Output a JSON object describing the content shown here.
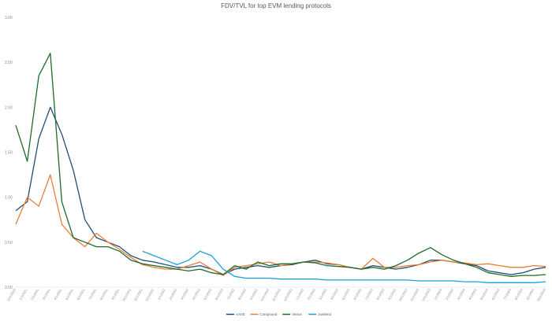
{
  "chart_data": {
    "type": "line",
    "title": "FDV/TVL for top EVM lending protocols",
    "xlabel": "",
    "ylabel": "",
    "ylim": [
      0,
      3
    ],
    "y_ticks": [
      "0.00",
      "0.50",
      "1.00",
      "1.50",
      "2.00",
      "2.50",
      "3.00"
    ],
    "x_tick_labels": [
      "12/1/2020",
      "1/1/2021",
      "2/1/2021",
      "3/1/2021",
      "4/1/2021",
      "5/1/2021",
      "6/1/2021",
      "7/1/2021",
      "8/1/2021",
      "9/1/2021",
      "10/1/2021",
      "11/1/2021",
      "12/1/2021",
      "1/1/2022",
      "2/1/2022",
      "3/1/2022",
      "4/1/2022",
      "5/1/2022",
      "6/1/2022",
      "7/1/2022",
      "8/1/2022",
      "9/1/2022",
      "10/1/2022",
      "11/1/2022",
      "12/1/2022",
      "1/1/2023",
      "2/1/2023",
      "3/1/2023",
      "4/1/2023",
      "5/1/2023",
      "6/1/2023",
      "7/1/2023",
      "8/1/2023",
      "9/1/2023",
      "10/1/2023",
      "11/1/2023",
      "12/1/2023",
      "1/1/2024",
      "2/1/2024",
      "3/1/2024",
      "4/1/2024",
      "5/1/2024",
      "6/1/2024",
      "7/1/2024",
      "8/1/2024",
      "9/1/2024",
      "10/1/2024"
    ],
    "grid": false,
    "legend_position": "bottom",
    "series": [
      {
        "name": "AAVE",
        "color": "#1f4e79",
        "x": [
          "12/1/2020",
          "1/1/2021",
          "2/1/2021",
          "3/1/2021",
          "4/1/2021",
          "5/1/2021",
          "6/1/2021",
          "7/1/2021",
          "8/1/2021",
          "9/1/2021",
          "10/1/2021",
          "11/1/2021",
          "12/1/2021",
          "1/1/2022",
          "2/1/2022",
          "3/1/2022",
          "4/1/2022",
          "5/1/2022",
          "6/1/2022",
          "7/1/2022",
          "8/1/2022",
          "9/1/2022",
          "10/1/2022",
          "11/1/2022",
          "12/1/2022",
          "1/1/2023",
          "2/1/2023",
          "3/1/2023",
          "4/1/2023",
          "5/1/2023",
          "6/1/2023",
          "7/1/2023",
          "8/1/2023",
          "9/1/2023",
          "10/1/2023",
          "11/1/2023",
          "12/1/2023",
          "1/1/2024",
          "2/1/2024",
          "3/1/2024",
          "4/1/2024",
          "5/1/2024",
          "6/1/2024",
          "7/1/2024",
          "8/1/2024",
          "9/1/2024",
          "10/1/2024"
        ],
        "y": [
          0.85,
          0.95,
          1.65,
          2.0,
          1.7,
          1.3,
          0.75,
          0.55,
          0.5,
          0.45,
          0.35,
          0.3,
          0.28,
          0.25,
          0.22,
          0.22,
          0.24,
          0.2,
          0.14,
          0.2,
          0.22,
          0.24,
          0.22,
          0.24,
          0.25,
          0.28,
          0.3,
          0.26,
          0.25,
          0.22,
          0.2,
          0.24,
          0.22,
          0.2,
          0.22,
          0.25,
          0.3,
          0.3,
          0.28,
          0.26,
          0.24,
          0.18,
          0.16,
          0.14,
          0.16,
          0.2,
          0.22
        ]
      },
      {
        "name": "Compound",
        "color": "#ed7d31",
        "x": [
          "12/1/2020",
          "1/1/2021",
          "2/1/2021",
          "3/1/2021",
          "4/1/2021",
          "5/1/2021",
          "6/1/2021",
          "7/1/2021",
          "8/1/2021",
          "9/1/2021",
          "10/1/2021",
          "11/1/2021",
          "12/1/2021",
          "1/1/2022",
          "2/1/2022",
          "3/1/2022",
          "4/1/2022",
          "5/1/2022",
          "6/1/2022",
          "7/1/2022",
          "8/1/2022",
          "9/1/2022",
          "10/1/2022",
          "11/1/2022",
          "12/1/2022",
          "1/1/2023",
          "2/1/2023",
          "3/1/2023",
          "4/1/2023",
          "5/1/2023",
          "6/1/2023",
          "7/1/2023",
          "8/1/2023",
          "9/1/2023",
          "10/1/2023",
          "11/1/2023",
          "12/1/2023",
          "1/1/2024",
          "2/1/2024",
          "3/1/2024",
          "4/1/2024",
          "5/1/2024",
          "6/1/2024",
          "7/1/2024",
          "8/1/2024",
          "9/1/2024",
          "10/1/2024"
        ],
        "y": [
          0.7,
          1.0,
          0.9,
          1.25,
          0.7,
          0.55,
          0.45,
          0.6,
          0.5,
          0.42,
          0.33,
          0.25,
          0.22,
          0.2,
          0.2,
          0.24,
          0.28,
          0.2,
          0.13,
          0.22,
          0.24,
          0.26,
          0.28,
          0.24,
          0.26,
          0.28,
          0.28,
          0.27,
          0.25,
          0.22,
          0.2,
          0.32,
          0.22,
          0.22,
          0.24,
          0.25,
          0.28,
          0.3,
          0.28,
          0.27,
          0.25,
          0.26,
          0.24,
          0.22,
          0.22,
          0.24,
          0.23
        ]
      },
      {
        "name": "Venus",
        "color": "#1e6b2a",
        "x": [
          "12/1/2020",
          "1/1/2021",
          "2/1/2021",
          "3/1/2021",
          "4/1/2021",
          "5/1/2021",
          "6/1/2021",
          "7/1/2021",
          "8/1/2021",
          "9/1/2021",
          "10/1/2021",
          "11/1/2021",
          "12/1/2021",
          "1/1/2022",
          "2/1/2022",
          "3/1/2022",
          "4/1/2022",
          "5/1/2022",
          "6/1/2022",
          "7/1/2022",
          "8/1/2022",
          "9/1/2022",
          "10/1/2022",
          "11/1/2022",
          "12/1/2022",
          "1/1/2023",
          "2/1/2023",
          "3/1/2023",
          "4/1/2023",
          "5/1/2023",
          "6/1/2023",
          "7/1/2023",
          "8/1/2023",
          "9/1/2023",
          "10/1/2023",
          "11/1/2023",
          "12/1/2023",
          "1/1/2024",
          "2/1/2024",
          "3/1/2024",
          "4/1/2024",
          "5/1/2024",
          "6/1/2024",
          "7/1/2024",
          "8/1/2024",
          "9/1/2024",
          "10/1/2024"
        ],
        "y": [
          1.8,
          1.4,
          2.35,
          2.6,
          0.95,
          0.55,
          0.5,
          0.45,
          0.45,
          0.4,
          0.3,
          0.26,
          0.24,
          0.22,
          0.2,
          0.18,
          0.2,
          0.16,
          0.14,
          0.24,
          0.2,
          0.28,
          0.24,
          0.26,
          0.26,
          0.28,
          0.27,
          0.24,
          0.23,
          0.22,
          0.2,
          0.22,
          0.2,
          0.24,
          0.3,
          0.38,
          0.44,
          0.36,
          0.3,
          0.26,
          0.22,
          0.16,
          0.14,
          0.12,
          0.13,
          0.13,
          0.14
        ]
      },
      {
        "name": "Justlend",
        "color": "#1aa0d8",
        "x": [
          "11/1/2021",
          "12/1/2021",
          "1/1/2022",
          "2/1/2022",
          "3/1/2022",
          "4/1/2022",
          "5/1/2022",
          "6/1/2022",
          "7/1/2022",
          "8/1/2022",
          "9/1/2022",
          "10/1/2022",
          "11/1/2022",
          "12/1/2022",
          "1/1/2023",
          "2/1/2023",
          "3/1/2023",
          "4/1/2023",
          "5/1/2023",
          "6/1/2023",
          "7/1/2023",
          "8/1/2023",
          "9/1/2023",
          "10/1/2023",
          "11/1/2023",
          "12/1/2023",
          "1/1/2024",
          "2/1/2024",
          "3/1/2024",
          "4/1/2024",
          "5/1/2024",
          "6/1/2024",
          "7/1/2024",
          "8/1/2024",
          "9/1/2024",
          "10/1/2024"
        ],
        "y": [
          0.4,
          0.35,
          0.3,
          0.25,
          0.3,
          0.4,
          0.35,
          0.2,
          0.12,
          0.1,
          0.1,
          0.1,
          0.09,
          0.09,
          0.09,
          0.09,
          0.08,
          0.08,
          0.08,
          0.08,
          0.08,
          0.08,
          0.08,
          0.08,
          0.07,
          0.07,
          0.07,
          0.07,
          0.06,
          0.06,
          0.05,
          0.05,
          0.05,
          0.05,
          0.05,
          0.06
        ]
      }
    ]
  }
}
